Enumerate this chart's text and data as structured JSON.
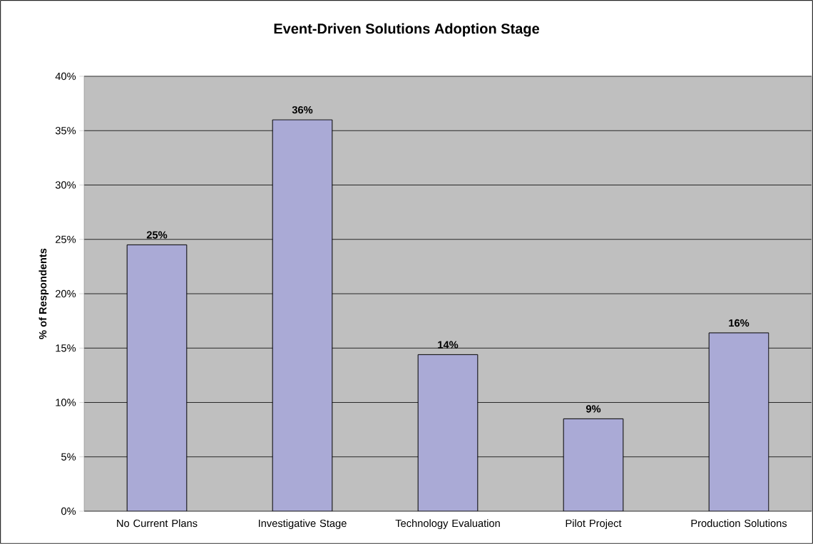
{
  "chart_data": {
    "type": "bar",
    "title": "Event-Driven Solutions Adoption Stage",
    "ylabel": "% of Respondents",
    "categories": [
      "No Current Plans",
      "Investigative Stage",
      "Technology Evaluation",
      "Pilot Project",
      "Production Solutions"
    ],
    "values": [
      24.5,
      36,
      14.4,
      8.5,
      16.4
    ],
    "value_labels": [
      "25%",
      "36%",
      "14%",
      "9%",
      "16%"
    ],
    "color": "#aaaad6",
    "ylim": [
      0,
      40
    ],
    "yticks": [
      {
        "value": 0,
        "label": "0%"
      },
      {
        "value": 5,
        "label": "5%"
      },
      {
        "value": 10,
        "label": "10%"
      },
      {
        "value": 15,
        "label": "15%"
      },
      {
        "value": 20,
        "label": "20%"
      },
      {
        "value": 25,
        "label": "25%"
      },
      {
        "value": 30,
        "label": "30%"
      },
      {
        "value": 35,
        "label": "35%"
      },
      {
        "value": 40,
        "label": "40%"
      }
    ],
    "grid": "y"
  }
}
